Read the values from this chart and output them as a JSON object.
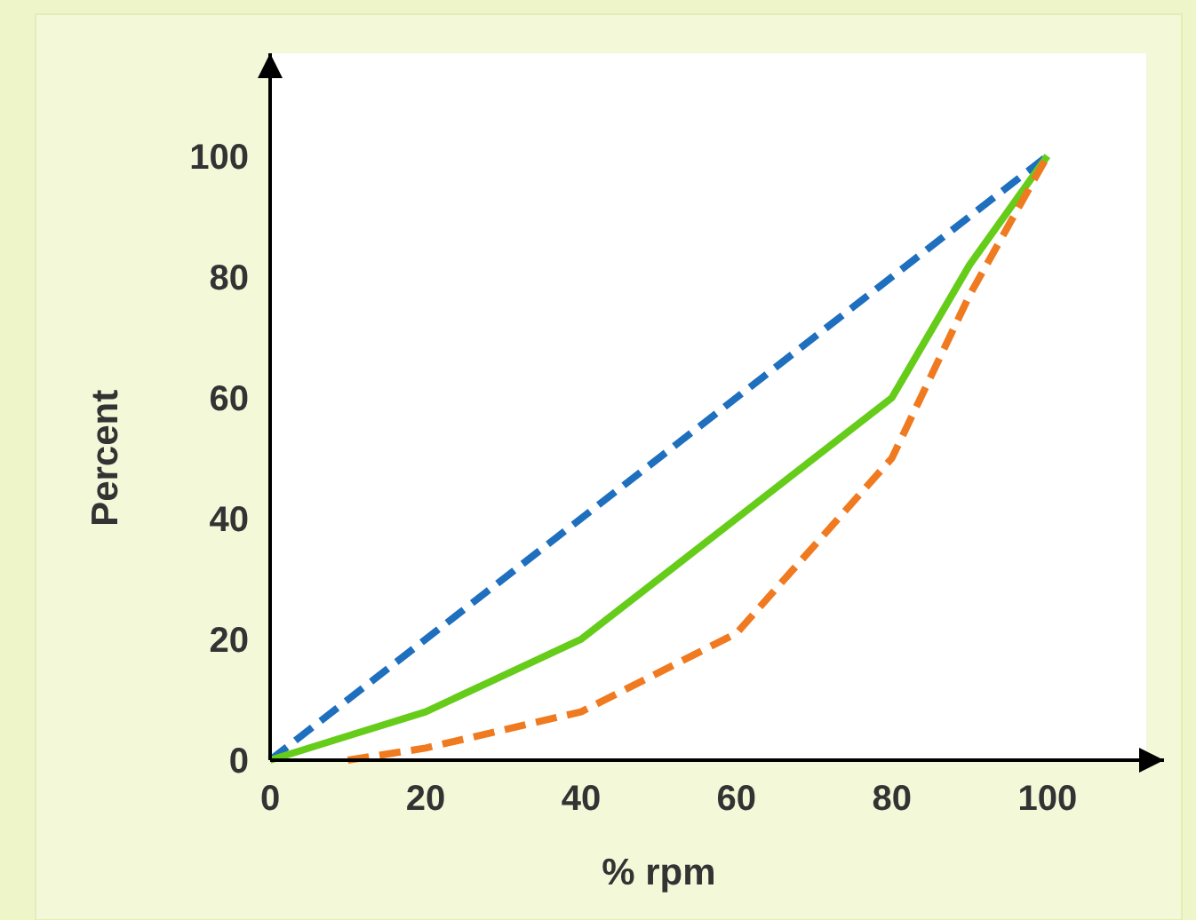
{
  "chart_data": {
    "type": "line",
    "xlabel": "% rpm",
    "ylabel": "Percent",
    "xlim": [
      0,
      115
    ],
    "ylim": [
      0,
      117
    ],
    "xticks": [
      0,
      20,
      40,
      60,
      80,
      100
    ],
    "yticks": [
      0,
      20,
      40,
      60,
      80,
      100
    ],
    "grid": false,
    "series": [
      {
        "color": "#1f6fbf",
        "line_style": "dashed",
        "x": [
          0,
          100
        ],
        "values": [
          0,
          100
        ]
      },
      {
        "color": "#66cc1a",
        "line_style": "solid",
        "x": [
          0,
          10,
          20,
          40,
          60,
          80,
          90,
          100
        ],
        "values": [
          0,
          4,
          8,
          20,
          40,
          60,
          82,
          100
        ]
      },
      {
        "color": "#f07a20",
        "line_style": "dashed",
        "x": [
          10,
          20,
          40,
          60,
          80,
          90,
          100
        ],
        "values": [
          0,
          2,
          8,
          21,
          50,
          77,
          100
        ]
      }
    ]
  }
}
